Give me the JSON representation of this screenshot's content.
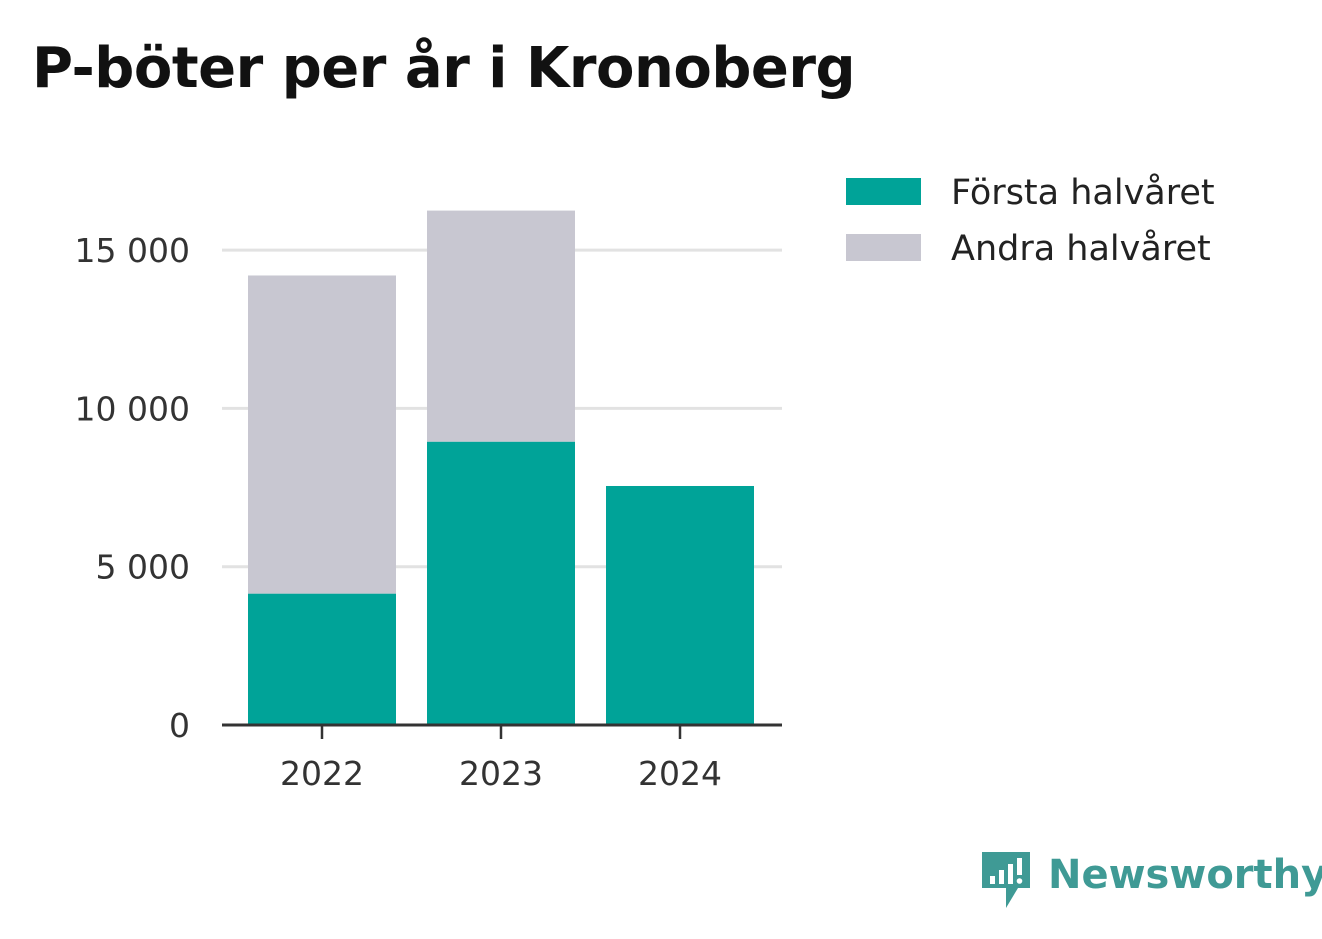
{
  "title": "P-böter per år i Kronoberg",
  "colors": {
    "first_half": "#00a398",
    "second_half": "#c8c7d1",
    "grid": "#e2e2e2",
    "axis": "#333333",
    "brand": "#3f9a95"
  },
  "chart_data": {
    "type": "bar",
    "stacked": true,
    "categories": [
      "2022",
      "2023",
      "2024"
    ],
    "series": [
      {
        "name": "Första halvåret",
        "values": [
          4150,
          8950,
          7550
        ]
      },
      {
        "name": "Andra halvåret",
        "values": [
          10050,
          7300,
          0
        ]
      }
    ],
    "ylim": [
      0,
      16300
    ],
    "yticks": [
      0,
      5000,
      10000,
      15000
    ],
    "ytick_labels": [
      "0",
      "5 000",
      "10 000",
      "15 000"
    ],
    "grid": true,
    "legend_position": "top-right"
  },
  "brand": {
    "name": "Newsworthy",
    "icon": "newsworthy-logo-icon"
  }
}
